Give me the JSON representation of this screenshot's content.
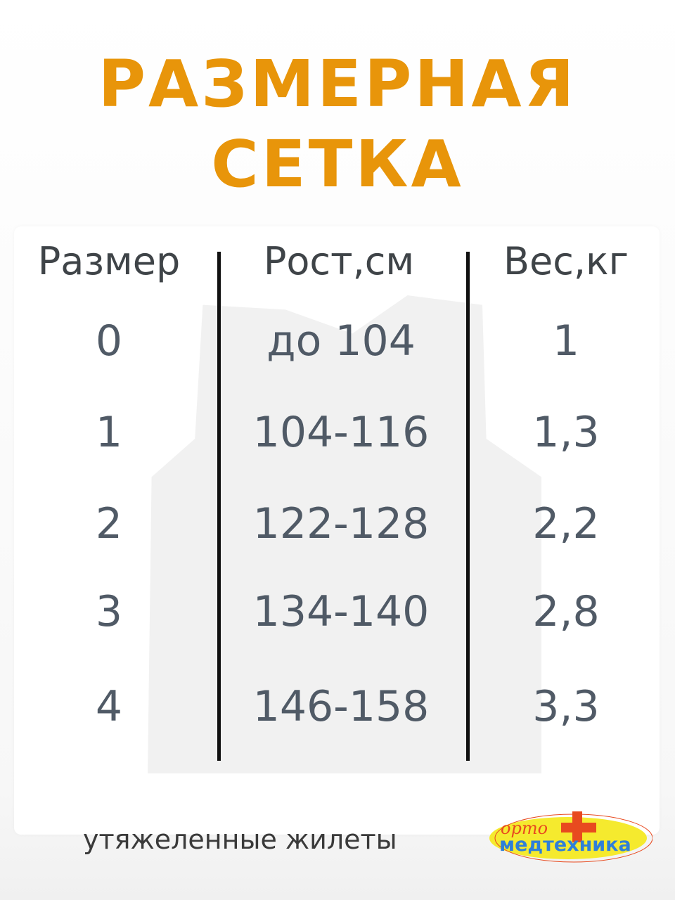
{
  "title": {
    "line1": "РАЗМЕРНАЯ",
    "line2": "СЕТКА"
  },
  "table": {
    "headers": [
      "Размер",
      "Рост,см",
      "Вес,кг"
    ],
    "rows": [
      {
        "size": "0",
        "height": "до 104",
        "weight": "1"
      },
      {
        "size": "1",
        "height": "104-116",
        "weight": "1,3"
      },
      {
        "size": "2",
        "height": "122-128",
        "weight": "2,2"
      },
      {
        "size": "3",
        "height": "134-140",
        "weight": "2,8"
      },
      {
        "size": "4",
        "height": "146-158",
        "weight": "3,3"
      }
    ]
  },
  "footer": "утяжеленные жилеты",
  "logo": {
    "top": "орто",
    "bottom": "медтехника"
  },
  "colors": {
    "title": "#e8950a",
    "text": "#505a66",
    "logo_yellow": "#f5ea2e",
    "logo_red": "#e84a1f",
    "logo_blue": "#2f7fd8"
  }
}
